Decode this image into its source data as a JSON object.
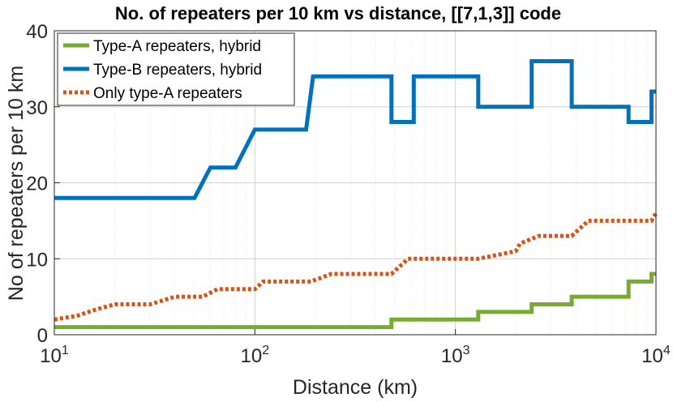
{
  "chart_data": {
    "type": "line",
    "title": "No. of repeaters per 10 km vs distance, [[7,1,3]] code",
    "xlabel": "Distance (km)",
    "ylabel": "No of repeaters per 10 km",
    "xscale": "log",
    "xlim": [
      10,
      10000
    ],
    "ylim": [
      0,
      40
    ],
    "grid": "major and minor",
    "legend_position": "top-left",
    "xticks": [
      {
        "base": "10",
        "exp": "1",
        "value": 10
      },
      {
        "base": "10",
        "exp": "2",
        "value": 100
      },
      {
        "base": "10",
        "exp": "3",
        "value": 1000
      },
      {
        "base": "10",
        "exp": "4",
        "value": 10000
      }
    ],
    "yticks": [
      {
        "label": "0",
        "value": 0
      },
      {
        "label": "10",
        "value": 10
      },
      {
        "label": "20",
        "value": 20
      },
      {
        "label": "30",
        "value": 30
      },
      {
        "label": "40",
        "value": 40
      }
    ],
    "series": [
      {
        "name": "Type-A repeaters, hybrid",
        "color": "#77ac30",
        "style": "solid",
        "x": [
          10,
          480,
          480,
          1300,
          1300,
          2400,
          2400,
          3800,
          3800,
          7300,
          7300,
          9500,
          9500,
          10000
        ],
        "y": [
          1,
          1,
          2,
          2,
          3,
          3,
          4,
          4,
          5,
          5,
          7,
          7,
          8,
          8
        ]
      },
      {
        "name": "Type-B repeaters, hybrid",
        "color": "#0072bd",
        "style": "solid",
        "x": [
          10,
          50,
          60,
          80,
          100,
          180,
          195,
          480,
          480,
          620,
          620,
          1300,
          1300,
          2400,
          2400,
          3800,
          3800,
          7300,
          7300,
          9500,
          9500,
          10000
        ],
        "y": [
          18,
          18,
          22,
          22,
          27,
          27,
          34,
          34,
          28,
          28,
          34,
          34,
          30,
          30,
          36,
          36,
          30,
          30,
          28,
          28,
          32,
          32
        ]
      },
      {
        "name": "Only type-A repeaters",
        "color": "#d95319",
        "style": "dotted",
        "x": [
          10,
          13,
          16,
          20,
          30,
          40,
          55,
          65,
          100,
          110,
          190,
          240,
          480,
          580,
          1300,
          2000,
          2100,
          2600,
          3800,
          4600,
          9500,
          10000
        ],
        "y": [
          2,
          2.5,
          3.3,
          4,
          4,
          5,
          5,
          6,
          6,
          7,
          7,
          8,
          8,
          10,
          10,
          11,
          12,
          13,
          13,
          15,
          15,
          16
        ]
      }
    ]
  }
}
